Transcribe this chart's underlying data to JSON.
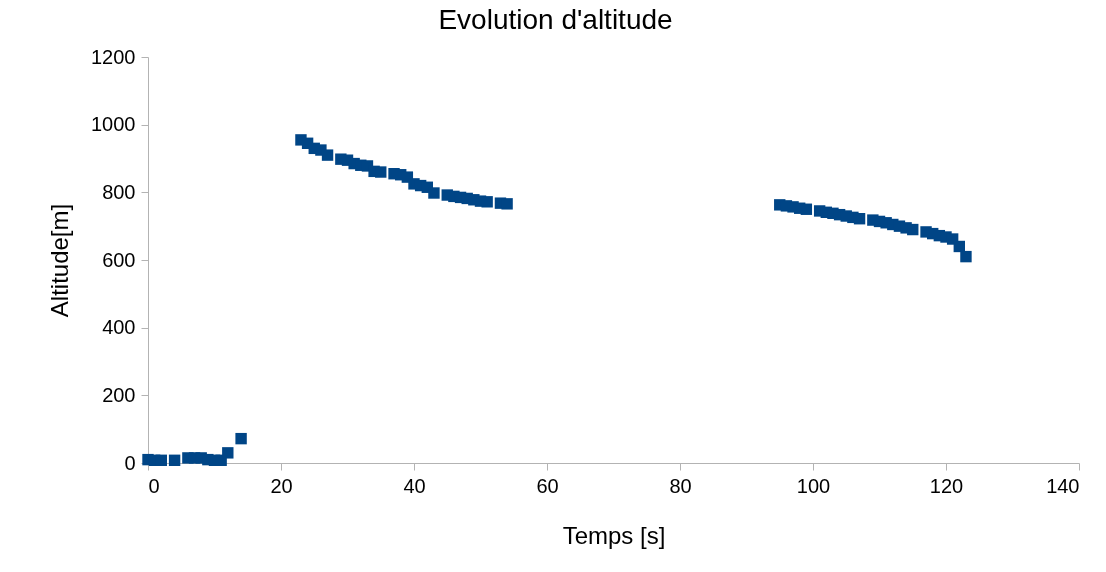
{
  "chart_data": {
    "type": "scatter",
    "title": "Evolution d'altitude",
    "xlabel": "Temps [s]",
    "ylabel": "Altitude[m]",
    "x": [
      0,
      1,
      2,
      4,
      6,
      7,
      8,
      9,
      10,
      11,
      12,
      14,
      23,
      24,
      25,
      26,
      27,
      29,
      30,
      31,
      32,
      33,
      34,
      35,
      37,
      38,
      39,
      40,
      41,
      42,
      43,
      45,
      46,
      47,
      48,
      49,
      50,
      51,
      53,
      54,
      95,
      96,
      97,
      98,
      99,
      101,
      102,
      103,
      104,
      105,
      106,
      107,
      109,
      110,
      111,
      112,
      113,
      114,
      115,
      117,
      118,
      119,
      120,
      121,
      122,
      123
    ],
    "series": [
      {
        "color": "#004586",
        "values": [
          10,
          8,
          8,
          8,
          15,
          15,
          15,
          10,
          8,
          8,
          30,
          72,
          955,
          945,
          930,
          925,
          910,
          898,
          895,
          885,
          880,
          878,
          862,
          860,
          855,
          852,
          845,
          825,
          820,
          815,
          798,
          792,
          788,
          785,
          782,
          778,
          774,
          772,
          768,
          766,
          763,
          760,
          757,
          753,
          750,
          745,
          741,
          738,
          734,
          730,
          726,
          722,
          718,
          714,
          710,
          705,
          700,
          695,
          690,
          683,
          678,
          672,
          668,
          662,
          640,
          610
        ]
      }
    ],
    "xlim": [
      0,
      140
    ],
    "xticks": [
      0,
      20,
      40,
      60,
      80,
      100,
      120,
      140
    ],
    "ylim": [
      0,
      1200
    ],
    "yticks": [
      0,
      200,
      400,
      600,
      800,
      1000,
      1200
    ],
    "grid": false,
    "legend": false,
    "marker": "square"
  }
}
